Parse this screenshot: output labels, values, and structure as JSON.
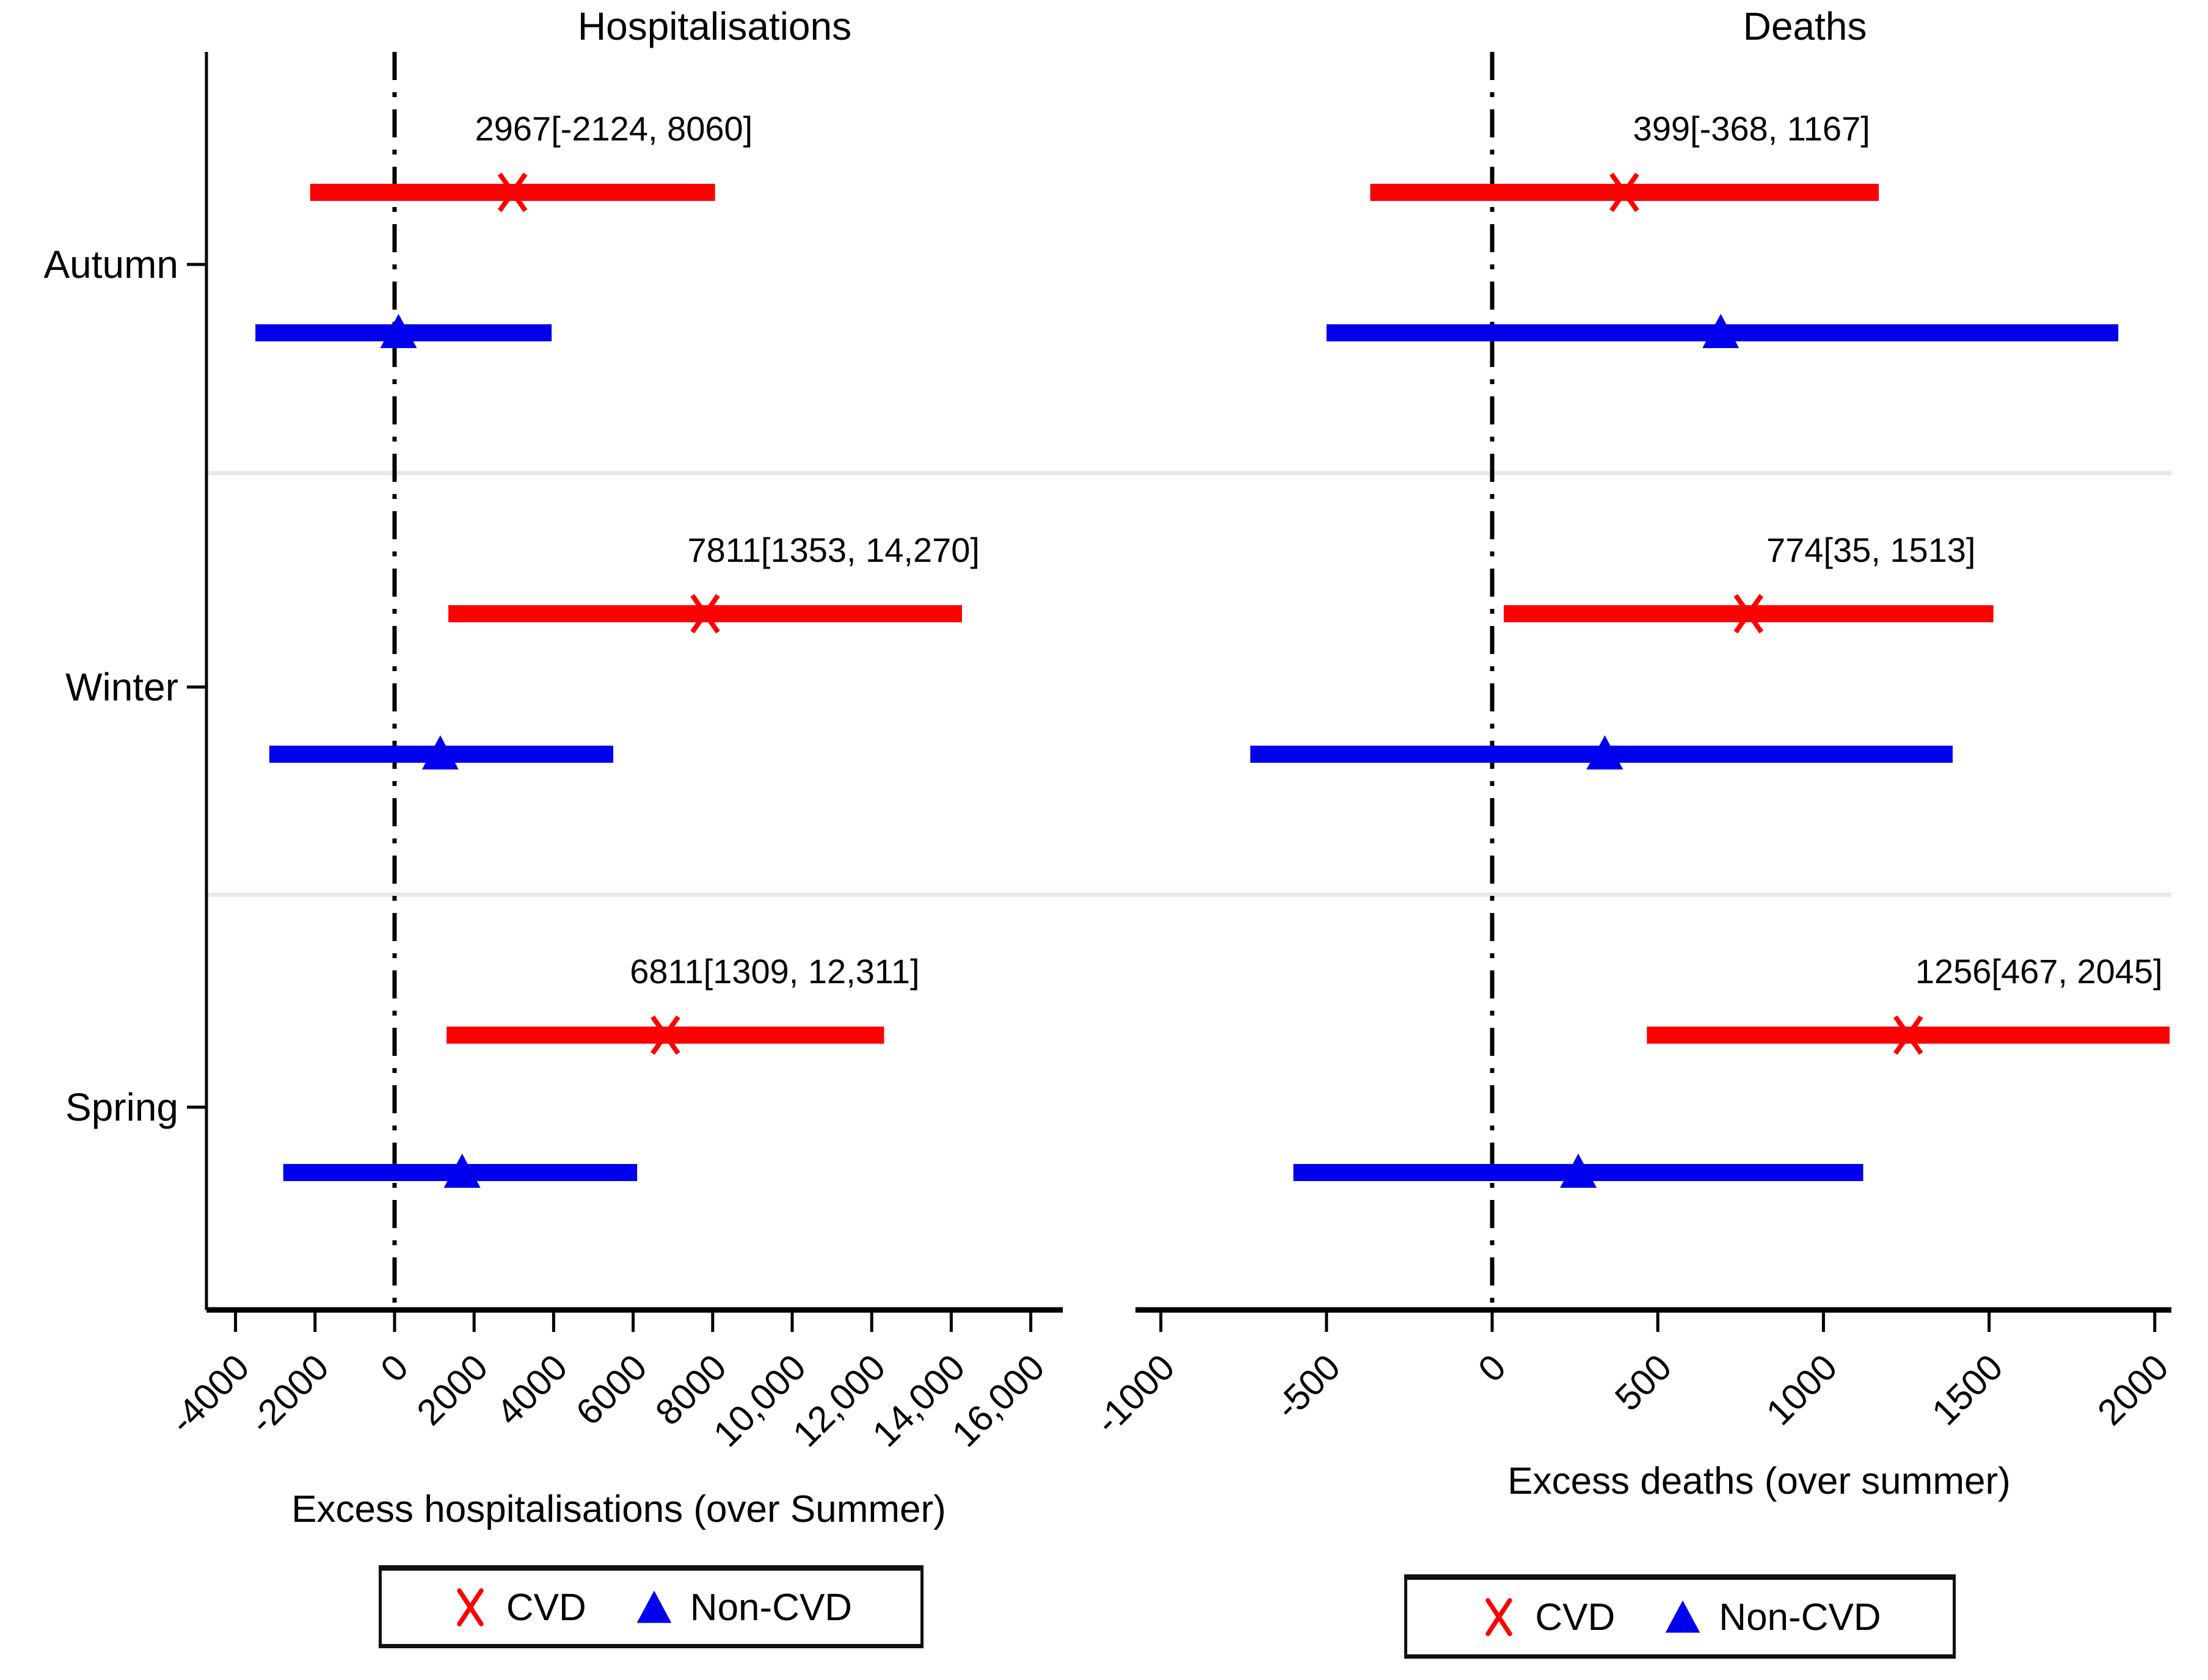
{
  "chart_data": {
    "type": "forest",
    "seasons": [
      "Autumn",
      "Winter",
      "Spring"
    ],
    "legend": {
      "cvd": "CVD",
      "noncvd": "Non-CVD"
    },
    "colors": {
      "cvd": "#ff0000",
      "noncvd": "#0000ee",
      "separator": "#e3eaec",
      "axis": "#000000"
    },
    "panels": [
      {
        "title": "Hospitalisations",
        "xlabel": "Excess hospitalisations (over Summer)",
        "xlim": [
          -4700,
          16800
        ],
        "xticks": [
          {
            "v": -4000,
            "label": "-4000"
          },
          {
            "v": -2000,
            "label": "-2000"
          },
          {
            "v": 0,
            "label": "0"
          },
          {
            "v": 2000,
            "label": "2000"
          },
          {
            "v": 4000,
            "label": "4000"
          },
          {
            "v": 6000,
            "label": "6000"
          },
          {
            "v": 8000,
            "label": "8000"
          },
          {
            "v": 10000,
            "label": "10,000"
          },
          {
            "v": 12000,
            "label": "12,000"
          },
          {
            "v": 14000,
            "label": "14,000"
          },
          {
            "v": 16000,
            "label": "16,000"
          }
        ],
        "rows": [
          {
            "season": "Autumn",
            "series": "CVD",
            "est": 2967,
            "lo": -2124,
            "hi": 8060,
            "annotation": "2967[-2124, 8060]"
          },
          {
            "season": "Autumn",
            "series": "Non-CVD",
            "est": 100,
            "lo": -3500,
            "hi": 3950,
            "annotation": ""
          },
          {
            "season": "Winter",
            "series": "CVD",
            "est": 7811,
            "lo": 1353,
            "hi": 14270,
            "annotation": "7811[1353, 14,270]"
          },
          {
            "season": "Winter",
            "series": "Non-CVD",
            "est": 1150,
            "lo": -3150,
            "hi": 5500,
            "annotation": ""
          },
          {
            "season": "Spring",
            "series": "CVD",
            "est": 6811,
            "lo": 1309,
            "hi": 12311,
            "annotation": "6811[1309, 12,311]"
          },
          {
            "season": "Spring",
            "series": "Non-CVD",
            "est": 1700,
            "lo": -2800,
            "hi": 6100,
            "annotation": ""
          }
        ]
      },
      {
        "title": "Deaths",
        "xlabel": "Excess deaths (over summer)",
        "xlim": [
          -1100,
          2100
        ],
        "xticks": [
          {
            "v": -1000,
            "label": "-1000"
          },
          {
            "v": -500,
            "label": "-500"
          },
          {
            "v": 0,
            "label": "0"
          },
          {
            "v": 500,
            "label": "500"
          },
          {
            "v": 1000,
            "label": "1000"
          },
          {
            "v": 1500,
            "label": "1500"
          },
          {
            "v": 2000,
            "label": "2000"
          }
        ],
        "rows": [
          {
            "season": "Autumn",
            "series": "CVD",
            "est": 399,
            "lo": -368,
            "hi": 1167,
            "annotation": "399[-368, 1167]"
          },
          {
            "season": "Autumn",
            "series": "Non-CVD",
            "est": 690,
            "lo": -500,
            "hi": 1890,
            "annotation": ""
          },
          {
            "season": "Winter",
            "series": "CVD",
            "est": 774,
            "lo": 35,
            "hi": 1513,
            "annotation": "774[35, 1513]"
          },
          {
            "season": "Winter",
            "series": "Non-CVD",
            "est": 340,
            "lo": -730,
            "hi": 1390,
            "annotation": ""
          },
          {
            "season": "Spring",
            "series": "CVD",
            "est": 1256,
            "lo": 467,
            "hi": 2045,
            "annotation": "1256[467, 2045]"
          },
          {
            "season": "Spring",
            "series": "Non-CVD",
            "est": 260,
            "lo": -600,
            "hi": 1120,
            "annotation": ""
          }
        ]
      }
    ]
  }
}
